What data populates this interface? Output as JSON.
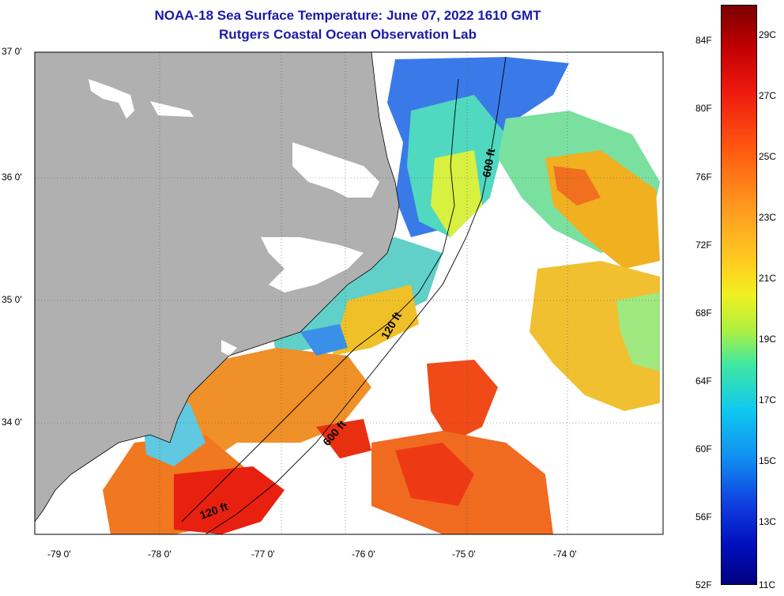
{
  "title": {
    "line1": "NOAA-18 Sea Surface Temperature:  June 07, 2022 1610 GMT",
    "line2": "Rutgers Coastal Ocean Observation Lab"
  },
  "lat_labels": [
    "37 0'",
    "36 0'",
    "35 0'",
    "34 0'"
  ],
  "lon_labels": [
    "-79 0'",
    "-78 0'",
    "-77 0'",
    "-76 0'",
    "-75 0'",
    "-74 0'"
  ],
  "isobaths": [
    {
      "label": "600 ft"
    },
    {
      "label": "120 ft"
    },
    {
      "label": "600 ft"
    },
    {
      "label": "120 ft"
    }
  ],
  "colorbar": {
    "fahrenheit": [
      "84F",
      "80F",
      "76F",
      "72F",
      "68F",
      "64F",
      "60F",
      "56F",
      "52F"
    ],
    "celsius": [
      "29C",
      "27C",
      "25C",
      "23C",
      "21C",
      "19C",
      "17C",
      "15C",
      "13C",
      "11C"
    ],
    "range_c": [
      11,
      30
    ]
  },
  "colors": {
    "title": "#1a1aa8",
    "land": "#b0b0b0",
    "no_data": "#ffffff"
  }
}
